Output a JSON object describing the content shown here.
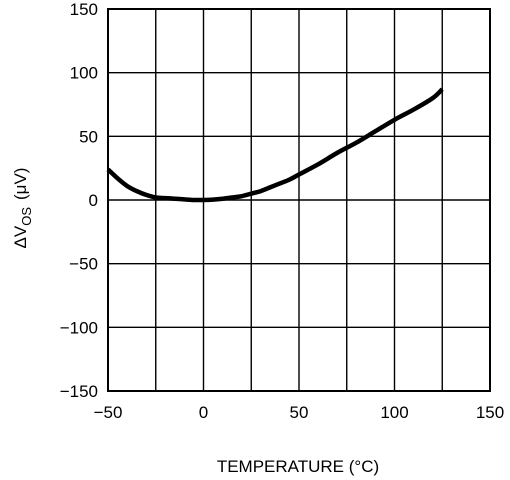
{
  "chart_data": {
    "type": "line",
    "xlabel": "TEMPERATURE (°C)",
    "ylabel": {
      "delta": "Δ",
      "var": "V",
      "sub": "OS",
      "unit": "(μV)"
    },
    "xlim": [
      -50,
      150
    ],
    "ylim": [
      -150,
      150
    ],
    "x_ticks": [
      -50,
      0,
      50,
      100,
      150
    ],
    "x_tick_labels": [
      "−50",
      "0",
      "50",
      "100",
      "150"
    ],
    "y_ticks": [
      150,
      100,
      50,
      0,
      -50,
      -100,
      -150
    ],
    "y_tick_labels": [
      "150",
      "100",
      "50",
      "0",
      "−50",
      "−100",
      "−150"
    ],
    "x_gridlines": [
      -50,
      -25,
      0,
      25,
      50,
      75,
      100,
      125,
      150
    ],
    "y_gridlines": [
      -150,
      -100,
      -50,
      0,
      50,
      100,
      150
    ],
    "grid": true,
    "series": [
      {
        "color": "#000000",
        "x": [
          -50,
          -45,
          -40,
          -35,
          -30,
          -25,
          -20,
          -15,
          -10,
          -5,
          0,
          5,
          10,
          15,
          20,
          25,
          30,
          35,
          40,
          45,
          50,
          60,
          70,
          80,
          90,
          100,
          110,
          120,
          125
        ],
        "y": [
          24,
          17,
          11,
          7,
          4,
          2,
          1.5,
          1,
          0.5,
          0,
          0,
          0.3,
          1,
          2,
          3,
          5,
          7,
          10,
          13,
          16,
          20,
          28,
          37,
          45,
          54,
          63,
          71,
          80,
          87
        ]
      }
    ]
  }
}
